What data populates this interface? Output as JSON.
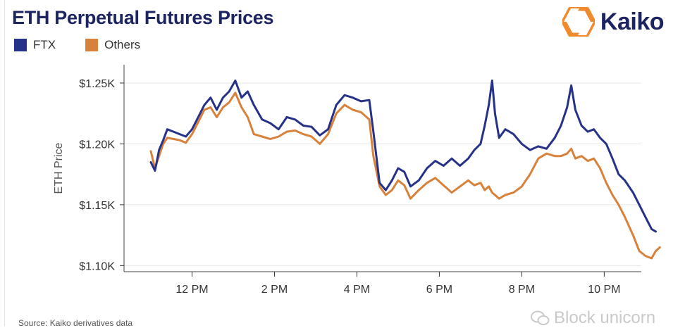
{
  "title": "ETH Perpetual Futures Prices",
  "brand": {
    "name": "Kaiko",
    "accent": "#f08a2c",
    "text_color": "#1c2461"
  },
  "source": "Source: Kaiko derivatives data",
  "watermark": "Block unicorn",
  "chart_data": {
    "type": "line",
    "title": "ETH Perpetual Futures Prices",
    "xlabel": "",
    "ylabel": "ETH Price",
    "x_ticks": [
      {
        "label": "12 PM",
        "hour": 12
      },
      {
        "label": "2 PM",
        "hour": 14
      },
      {
        "label": "4 PM",
        "hour": 16
      },
      {
        "label": "6 PM",
        "hour": 18
      },
      {
        "label": "8 PM",
        "hour": 20
      },
      {
        "label": "10 PM",
        "hour": 22
      }
    ],
    "y_ticks": [
      {
        "label": "$1.10K",
        "value": 1100
      },
      {
        "label": "$1.15K",
        "value": 1150
      },
      {
        "label": "$1.20K",
        "value": 1200
      },
      {
        "label": "$1.25K",
        "value": 1250
      }
    ],
    "xlim": [
      10.35,
      22.9
    ],
    "ylim": [
      1095,
      1265
    ],
    "grid": "horizontal",
    "legend_position": "top-left",
    "series": [
      {
        "name": "FTX",
        "color": "#263287",
        "points": [
          [
            11.0,
            1185
          ],
          [
            11.1,
            1178
          ],
          [
            11.2,
            1195
          ],
          [
            11.3,
            1203
          ],
          [
            11.4,
            1212
          ],
          [
            11.55,
            1210
          ],
          [
            11.7,
            1208
          ],
          [
            11.85,
            1206
          ],
          [
            12.0,
            1212
          ],
          [
            12.15,
            1222
          ],
          [
            12.3,
            1232
          ],
          [
            12.45,
            1238
          ],
          [
            12.6,
            1228
          ],
          [
            12.75,
            1238
          ],
          [
            12.9,
            1243
          ],
          [
            13.05,
            1252
          ],
          [
            13.2,
            1238
          ],
          [
            13.35,
            1243
          ],
          [
            13.5,
            1232
          ],
          [
            13.7,
            1220
          ],
          [
            13.9,
            1217
          ],
          [
            14.1,
            1212
          ],
          [
            14.3,
            1222
          ],
          [
            14.5,
            1220
          ],
          [
            14.7,
            1215
          ],
          [
            14.9,
            1214
          ],
          [
            15.1,
            1207
          ],
          [
            15.3,
            1212
          ],
          [
            15.5,
            1232
          ],
          [
            15.7,
            1240
          ],
          [
            15.9,
            1238
          ],
          [
            16.1,
            1235
          ],
          [
            16.3,
            1236
          ],
          [
            16.4,
            1210
          ],
          [
            16.55,
            1168
          ],
          [
            16.7,
            1162
          ],
          [
            16.85,
            1170
          ],
          [
            17.0,
            1180
          ],
          [
            17.15,
            1177
          ],
          [
            17.3,
            1165
          ],
          [
            17.5,
            1170
          ],
          [
            17.7,
            1180
          ],
          [
            17.9,
            1186
          ],
          [
            18.1,
            1182
          ],
          [
            18.3,
            1188
          ],
          [
            18.5,
            1182
          ],
          [
            18.7,
            1188
          ],
          [
            18.85,
            1195
          ],
          [
            19.0,
            1200
          ],
          [
            19.1,
            1215
          ],
          [
            19.2,
            1232
          ],
          [
            19.28,
            1252
          ],
          [
            19.35,
            1225
          ],
          [
            19.45,
            1205
          ],
          [
            19.6,
            1212
          ],
          [
            19.8,
            1208
          ],
          [
            20.0,
            1200
          ],
          [
            20.2,
            1195
          ],
          [
            20.4,
            1198
          ],
          [
            20.6,
            1196
          ],
          [
            20.8,
            1205
          ],
          [
            20.95,
            1215
          ],
          [
            21.1,
            1230
          ],
          [
            21.2,
            1248
          ],
          [
            21.3,
            1228
          ],
          [
            21.45,
            1215
          ],
          [
            21.6,
            1210
          ],
          [
            21.75,
            1212
          ],
          [
            21.9,
            1205
          ],
          [
            22.05,
            1200
          ],
          [
            22.2,
            1188
          ],
          [
            22.35,
            1175
          ],
          [
            22.5,
            1170
          ],
          [
            22.7,
            1160
          ],
          [
            22.85,
            1150
          ],
          [
            23.0,
            1140
          ],
          [
            23.15,
            1130
          ],
          [
            23.25,
            1128
          ]
        ]
      },
      {
        "name": "Others",
        "color": "#d8813a",
        "points": [
          [
            11.0,
            1194
          ],
          [
            11.1,
            1180
          ],
          [
            11.2,
            1190
          ],
          [
            11.3,
            1200
          ],
          [
            11.4,
            1205
          ],
          [
            11.55,
            1204
          ],
          [
            11.7,
            1203
          ],
          [
            11.85,
            1201
          ],
          [
            12.0,
            1208
          ],
          [
            12.15,
            1218
          ],
          [
            12.3,
            1228
          ],
          [
            12.45,
            1230
          ],
          [
            12.6,
            1222
          ],
          [
            12.75,
            1230
          ],
          [
            12.9,
            1234
          ],
          [
            13.05,
            1242
          ],
          [
            13.2,
            1230
          ],
          [
            13.35,
            1222
          ],
          [
            13.5,
            1208
          ],
          [
            13.7,
            1206
          ],
          [
            13.9,
            1204
          ],
          [
            14.1,
            1206
          ],
          [
            14.3,
            1210
          ],
          [
            14.5,
            1211
          ],
          [
            14.7,
            1208
          ],
          [
            14.9,
            1206
          ],
          [
            15.1,
            1200
          ],
          [
            15.3,
            1208
          ],
          [
            15.5,
            1225
          ],
          [
            15.7,
            1232
          ],
          [
            15.9,
            1228
          ],
          [
            16.1,
            1226
          ],
          [
            16.3,
            1220
          ],
          [
            16.4,
            1190
          ],
          [
            16.55,
            1165
          ],
          [
            16.7,
            1158
          ],
          [
            16.85,
            1162
          ],
          [
            17.0,
            1170
          ],
          [
            17.15,
            1166
          ],
          [
            17.3,
            1155
          ],
          [
            17.5,
            1162
          ],
          [
            17.7,
            1168
          ],
          [
            17.9,
            1172
          ],
          [
            18.1,
            1166
          ],
          [
            18.3,
            1160
          ],
          [
            18.5,
            1165
          ],
          [
            18.7,
            1170
          ],
          [
            18.85,
            1166
          ],
          [
            19.0,
            1168
          ],
          [
            19.1,
            1162
          ],
          [
            19.2,
            1165
          ],
          [
            19.28,
            1160
          ],
          [
            19.35,
            1158
          ],
          [
            19.45,
            1155
          ],
          [
            19.6,
            1158
          ],
          [
            19.8,
            1160
          ],
          [
            20.0,
            1165
          ],
          [
            20.2,
            1175
          ],
          [
            20.4,
            1188
          ],
          [
            20.6,
            1192
          ],
          [
            20.8,
            1190
          ],
          [
            20.95,
            1190
          ],
          [
            21.1,
            1192
          ],
          [
            21.2,
            1196
          ],
          [
            21.3,
            1188
          ],
          [
            21.45,
            1190
          ],
          [
            21.6,
            1186
          ],
          [
            21.75,
            1188
          ],
          [
            21.9,
            1180
          ],
          [
            22.05,
            1168
          ],
          [
            22.2,
            1158
          ],
          [
            22.35,
            1150
          ],
          [
            22.5,
            1140
          ],
          [
            22.7,
            1125
          ],
          [
            22.85,
            1112
          ],
          [
            23.0,
            1108
          ],
          [
            23.15,
            1106
          ],
          [
            23.25,
            1112
          ],
          [
            23.35,
            1115
          ]
        ]
      }
    ]
  }
}
